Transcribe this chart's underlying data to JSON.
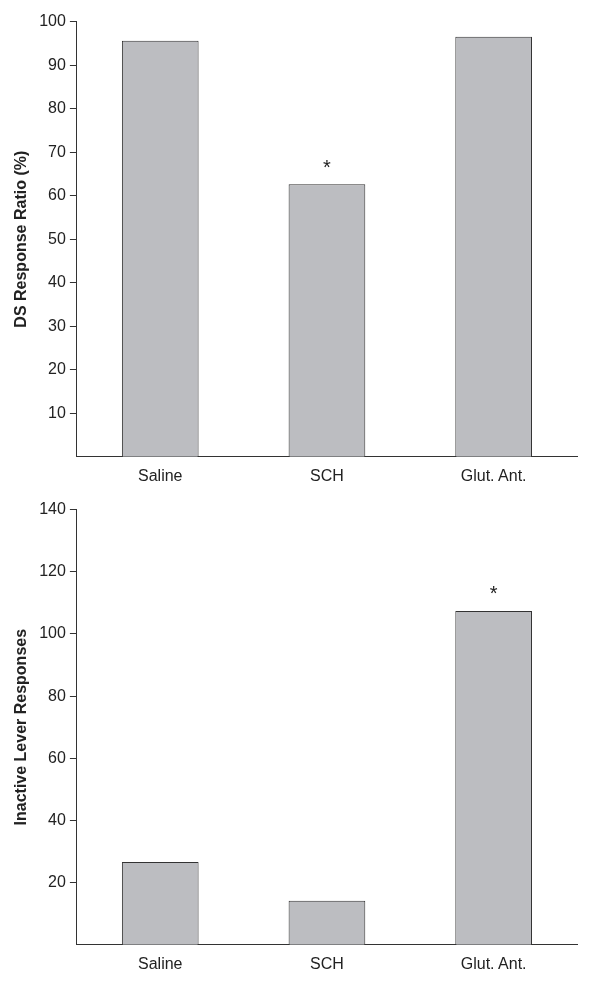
{
  "chart_data": [
    {
      "type": "bar",
      "ylabel": "DS Response Ratio (%)",
      "categories": [
        "Saline",
        "SCH",
        "Glut. Ant."
      ],
      "values": [
        95.6,
        62.6,
        96.5
      ],
      "color": "#bcbdc1",
      "ylim": [
        0,
        100
      ],
      "yticks": [
        10,
        20,
        30,
        40,
        50,
        60,
        70,
        80,
        90,
        100
      ],
      "grid": false,
      "annotations": [
        {
          "text": "*",
          "x": "SCH",
          "y": 62.6
        }
      ]
    },
    {
      "type": "bar",
      "ylabel": "Inactive Lever Responses",
      "categories": [
        "Saline",
        "SCH",
        "Glut. Ant."
      ],
      "values": [
        26.6,
        14.2,
        107.4
      ],
      "color": "#bcbdc1",
      "ylim": [
        0,
        140
      ],
      "yticks": [
        20,
        40,
        60,
        80,
        100,
        120,
        140
      ],
      "grid": false,
      "annotations": [
        {
          "text": "*",
          "x": "Glut. Ant.",
          "y": 107.4
        }
      ]
    }
  ]
}
